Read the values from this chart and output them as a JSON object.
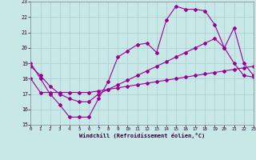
{
  "xlabel": "Windchill (Refroidissement éolien,°C)",
  "bg_color": "#c8e8e8",
  "line_color": "#990099",
  "grid_color": "#aacccc",
  "xlim": [
    0,
    23
  ],
  "ylim": [
    15,
    23
  ],
  "xticks": [
    0,
    1,
    2,
    3,
    4,
    5,
    6,
    7,
    8,
    9,
    10,
    11,
    12,
    13,
    14,
    15,
    16,
    17,
    18,
    19,
    20,
    21,
    22,
    23
  ],
  "yticks": [
    15,
    16,
    17,
    18,
    19,
    20,
    21,
    22,
    23
  ],
  "line1_x": [
    0,
    1,
    2,
    3,
    4,
    5,
    6,
    7,
    8,
    9,
    10,
    11,
    12,
    13,
    14,
    15,
    16,
    17,
    18,
    19,
    20,
    21,
    22,
    23
  ],
  "line1_y": [
    19.0,
    18.0,
    17.0,
    16.3,
    15.5,
    15.5,
    15.5,
    16.7,
    17.8,
    19.4,
    19.8,
    20.2,
    20.3,
    19.7,
    21.8,
    22.7,
    22.5,
    22.5,
    22.4,
    21.5,
    20.0,
    19.0,
    18.2,
    18.1
  ],
  "line2_x": [
    0,
    1,
    2,
    3,
    4,
    5,
    6,
    7,
    8,
    9,
    10,
    11,
    12,
    13,
    14,
    15,
    16,
    17,
    18,
    19,
    20,
    21,
    22,
    23
  ],
  "line2_y": [
    18.0,
    17.1,
    17.1,
    17.1,
    17.1,
    17.1,
    17.1,
    17.2,
    17.3,
    17.4,
    17.5,
    17.6,
    17.7,
    17.8,
    17.9,
    18.0,
    18.1,
    18.2,
    18.3,
    18.4,
    18.5,
    18.6,
    18.7,
    18.8
  ],
  "line3_x": [
    0,
    1,
    2,
    3,
    4,
    5,
    6,
    7,
    8,
    9,
    10,
    11,
    12,
    13,
    14,
    15,
    16,
    17,
    18,
    19,
    20,
    21,
    22,
    23
  ],
  "line3_y": [
    18.8,
    18.2,
    17.5,
    17.0,
    16.7,
    16.5,
    16.5,
    17.0,
    17.3,
    17.6,
    17.9,
    18.2,
    18.5,
    18.8,
    19.1,
    19.4,
    19.7,
    20.0,
    20.3,
    20.6,
    20.0,
    21.3,
    19.0,
    18.2
  ]
}
